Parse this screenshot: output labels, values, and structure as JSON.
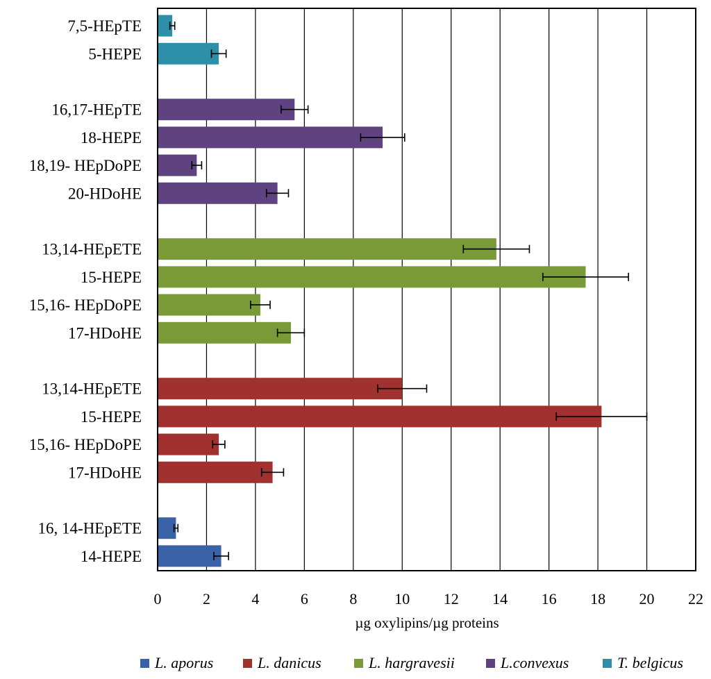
{
  "chart_data": {
    "type": "bar",
    "orientation": "horizontal",
    "xlabel": "µg oxylipins/µg  proteins",
    "xlim": [
      0,
      22
    ],
    "xticks": [
      0,
      2,
      4,
      6,
      8,
      10,
      12,
      14,
      16,
      18,
      20,
      22
    ],
    "grid": "vertical",
    "legend_position": "bottom",
    "colors": {
      "L. aporus": "#3a62a6",
      "L. danicus": "#a0312e",
      "L. hargravesii": "#7a9a38",
      "L.convexus": "#5e4380",
      "T. belgicus": "#2e90a8"
    },
    "series": [
      {
        "name": "T. belgicus",
        "bars": [
          {
            "label": "7,5-HEpTE",
            "value": 0.6,
            "error": 0.1
          },
          {
            "label": "5-HEPE",
            "value": 2.5,
            "error": 0.3
          }
        ]
      },
      {
        "name": "L.convexus",
        "bars": [
          {
            "label": "16,17-HEpTE",
            "value": 5.6,
            "error": 0.55
          },
          {
            "label": "18-HEPE",
            "value": 9.2,
            "error": 0.9
          },
          {
            "label": "18,19- HEpDoPE",
            "value": 1.6,
            "error": 0.2
          },
          {
            "label": "20-HDoHE",
            "value": 4.9,
            "error": 0.45
          }
        ]
      },
      {
        "name": "L. hargravesii",
        "bars": [
          {
            "label": "13,14-HEpETE",
            "value": 13.85,
            "error": 1.35
          },
          {
            "label": "15-HEPE",
            "value": 17.5,
            "error": 1.75
          },
          {
            "label": "15,16- HEpDoPE",
            "value": 4.2,
            "error": 0.4
          },
          {
            "label": "17-HDoHE",
            "value": 5.45,
            "error": 0.55
          }
        ]
      },
      {
        "name": "L. danicus",
        "bars": [
          {
            "label": "13,14-HEpETE",
            "value": 10.0,
            "error": 1.0
          },
          {
            "label": "15-HEPE",
            "value": 18.15,
            "error": 1.85
          },
          {
            "label": "15,16- HEpDoPE",
            "value": 2.5,
            "error": 0.25
          },
          {
            "label": "17-HDoHE",
            "value": 4.7,
            "error": 0.45
          }
        ]
      },
      {
        "name": "L. aporus",
        "bars": [
          {
            "label": "16, 14-HEpETE",
            "value": 0.75,
            "error": 0.08
          },
          {
            "label": "14-HEPE",
            "value": 2.6,
            "error": 0.3
          }
        ]
      }
    ],
    "legend_order": [
      "L. aporus",
      "L. danicus",
      "L. hargravesii",
      "L.convexus",
      "T. belgicus"
    ]
  }
}
